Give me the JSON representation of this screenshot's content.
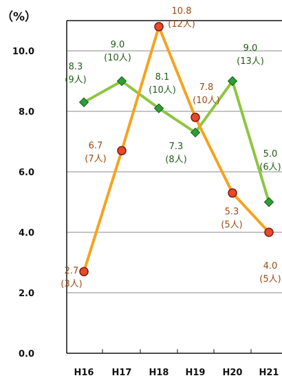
{
  "chart_data": {
    "type": "line",
    "unit_label": "（%）",
    "categories": [
      "H16",
      "H17",
      "H18",
      "H19",
      "H20",
      "H21"
    ],
    "ylim": [
      0,
      11
    ],
    "yticks": [
      "0.0",
      "2.0",
      "4.0",
      "6.0",
      "8.0",
      "10.0"
    ],
    "grid": true,
    "series": [
      {
        "key": "green",
        "color": "#8cc63f",
        "marker_color": "#2e9e34",
        "marker": "diamond",
        "values": [
          8.3,
          9.0,
          8.1,
          7.3,
          9.0,
          5.0
        ],
        "value_labels": [
          "8.3",
          "9.0",
          "8.1",
          "7.3",
          "9.0",
          "5.0"
        ],
        "count_labels": [
          "(9人)",
          "(10人)",
          "(10人)",
          "(8人)",
          "(13人)",
          "(6人)"
        ]
      },
      {
        "key": "orange",
        "color": "#f7a21b",
        "marker_color": "#e8492a",
        "marker": "circle",
        "values": [
          2.7,
          6.7,
          10.8,
          7.8,
          5.3,
          4.0
        ],
        "value_labels": [
          "2.7",
          "6.7",
          "10.8",
          "7.8",
          "5.3",
          "4.0"
        ],
        "count_labels": [
          "(3人)",
          "(7人)",
          "(12人)",
          "(10人)",
          "(5人)",
          "(5人)"
        ]
      }
    ]
  }
}
